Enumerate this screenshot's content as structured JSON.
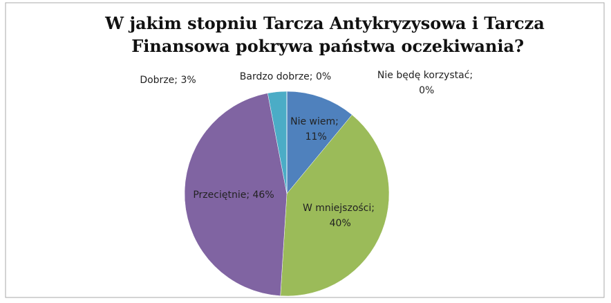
{
  "chart_data": {
    "type": "pie",
    "title": "W jakim stopniu Tarcza Antykryzysowa i Tarcza Finansowa pokrywa państwa oczekiwania?",
    "categories": [
      "Nie wiem",
      "W mniejszości",
      "Przeciętnie",
      "Dobrze",
      "Bardzo dobrze",
      "Nie będę korzystać"
    ],
    "values": [
      11,
      40,
      46,
      3,
      0,
      0
    ],
    "value_labels": [
      "Nie wiem; 11%",
      "W mniejszości; 40%",
      "Przeciętnie; 46%",
      "Dobrze; 3%",
      "Bardzo dobrze; 0%",
      "Nie będę korzystać; 0%"
    ],
    "colors": [
      "#4f81bd",
      "#9bbb59",
      "#8064a2",
      "#4bacc6",
      "#f79646",
      "#2c4d75"
    ]
  }
}
